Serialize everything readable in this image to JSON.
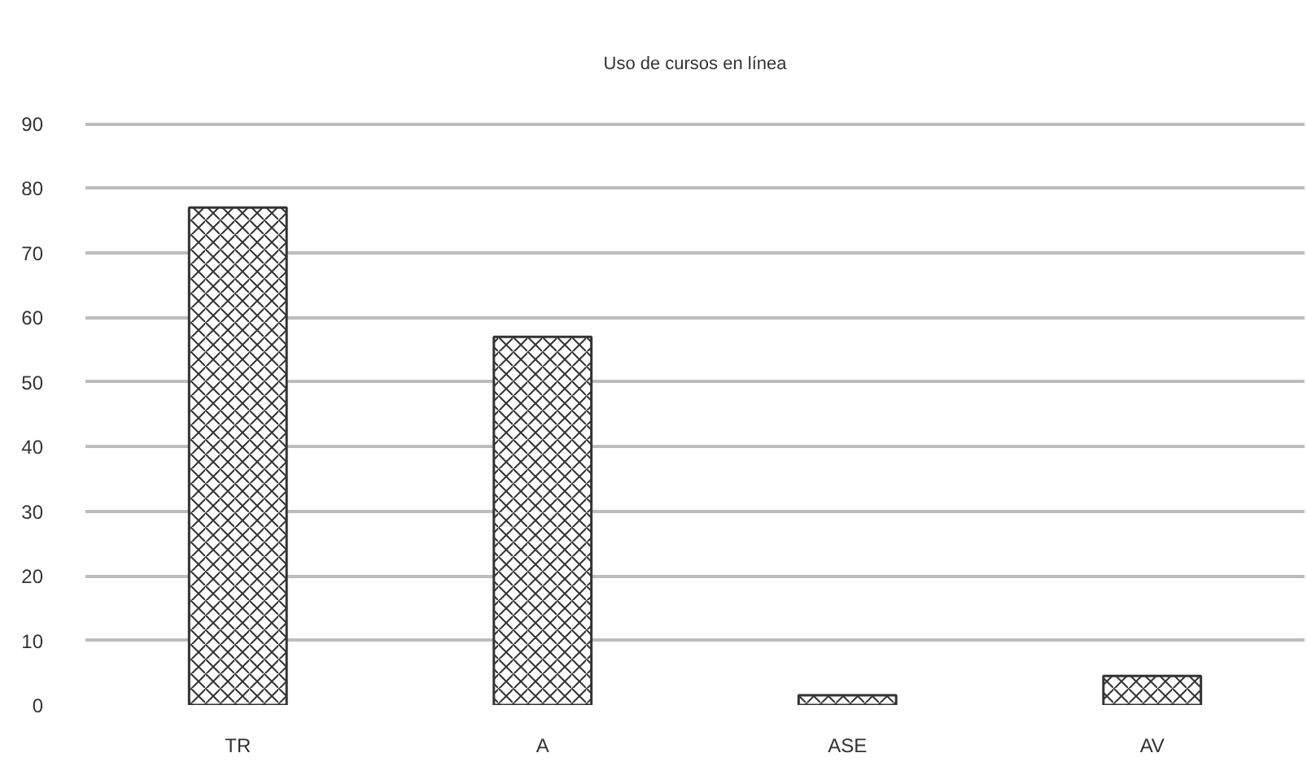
{
  "chart_data": {
    "type": "bar",
    "title": "Uso de cursos en línea",
    "categories": [
      "TR",
      "A",
      "ASE",
      "AV"
    ],
    "values": [
      77,
      57,
      1.5,
      4.5
    ],
    "color": "#333333",
    "ylim": [
      0,
      90
    ],
    "yticks": [
      0,
      10,
      20,
      30,
      40,
      50,
      60,
      70,
      80,
      90
    ],
    "grid": "y"
  }
}
